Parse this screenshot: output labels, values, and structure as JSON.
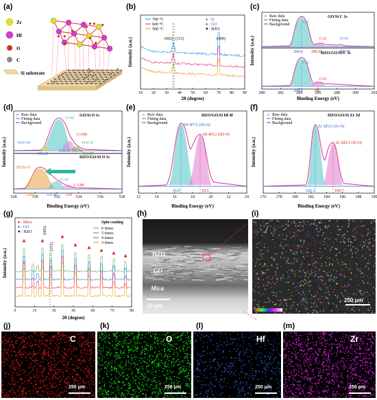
{
  "labels": [
    "(a)",
    "(b)",
    "(c)",
    "(d)",
    "(e)",
    "(f)",
    "(g)",
    "(h)",
    "(i)",
    "(j)",
    "(k)",
    "(l)",
    "(m)"
  ],
  "panel_a": {
    "legend": [
      {
        "text": "Zr",
        "color": "#e9dd2b"
      },
      {
        "text": "Hf",
        "color": "#d43bd0"
      },
      {
        "text": "O",
        "color": "#e02828"
      },
      {
        "text": "C",
        "color": "#8a8a8a"
      }
    ],
    "substrate_label": "Si substrate"
  },
  "panel_b": {
    "xlabel": "2θ (degree)",
    "ylabel": "Intensity (a.u.)",
    "legend": [
      "700 °C",
      "600 °C",
      "500 °C"
    ],
    "markers": [
      "♦ : Si",
      "♦ : GO",
      "♥ : HZO"
    ],
    "peak_labels": [
      "(002)",
      "(111)",
      "(400)"
    ],
    "ticks": [
      "10",
      "20",
      "30",
      "40",
      "50",
      "60",
      "70",
      "80",
      "90"
    ]
  },
  "panel_c": {
    "top_title": "GO/Si C 1s",
    "bottom_title": "HZO/GO/Si C 1s",
    "legend": [
      "Raw data",
      "Fitting data",
      "Background"
    ],
    "top_peaks": [
      "C-C",
      "C-O",
      "C=O"
    ],
    "top_values": [
      "284.8",
      "286.05",
      "288.79"
    ],
    "bottom_peaks": [
      "C-C",
      "C-O"
    ],
    "bottom_values": [
      "284.8",
      "286"
    ],
    "xlabel": "Binding Energy (eV)",
    "ylabel": "Intensity (a.u.)",
    "ticks": [
      "280",
      "282",
      "284",
      "286",
      "288",
      "290",
      "292"
    ]
  },
  "panel_d": {
    "top_title": "GO/Si O 1s",
    "bottom_title": "HZO/GO/Si O 1s",
    "legend": [
      "Raw data",
      "Fitting data",
      "Background"
    ],
    "top_peaks": [
      "C=O",
      "C-OH",
      "O-C=O",
      "O-C-C"
    ],
    "top_values": [
      "531.25",
      "532.22",
      "533.10",
      "533.87"
    ],
    "bottom_peaks": [
      "Hf/Zr-O",
      "C=O",
      "C-OH"
    ],
    "bottom_values": [
      "530.15",
      "531.83",
      "533"
    ],
    "xlabel": "Binding Energy (eV)",
    "ylabel": "Intensity (a.u.)",
    "ticks": [
      "528",
      "530",
      "532",
      "534",
      "536",
      "538"
    ]
  },
  "panel_e": {
    "title": "HZO/GO/Si Hf 4f",
    "legend": [
      "Raw data",
      "Fitting data",
      "Background"
    ],
    "peaks": [
      "Hf 4f7/2 (Hf-O)",
      "Hf 4f5/2 (Hf-O)"
    ],
    "values": [
      "16.9",
      "18.5"
    ],
    "xlabel": "Binding Energy (eV)",
    "ylabel": "Intensity (a.u.)",
    "ticks": [
      "12",
      "14",
      "16",
      "18",
      "20",
      "22",
      "24"
    ]
  },
  "panel_f": {
    "title": "HZO/GO/Si Zr 3d",
    "legend": [
      "Raw data",
      "Fitting data",
      "Background"
    ],
    "peaks": [
      "Zr 3d5/2 (Zr-O)",
      "Zr 3d3/2 (Zr-O)"
    ],
    "values": [
      "182.3",
      "184.7"
    ],
    "xlabel": "Binding Energy (eV)",
    "ylabel": "Intensity (a.u.)",
    "ticks": [
      "176",
      "178",
      "180",
      "182",
      "184",
      "186",
      "188",
      "190"
    ]
  },
  "panel_g": {
    "markers": [
      "♠ : Mica",
      "♦ : GO",
      "♥ : HZO"
    ],
    "legend_title": "Spin coating",
    "legend": [
      "6 times",
      "5 times",
      "4 times",
      "3 times"
    ],
    "peak_labels": [
      "(002)",
      "(111)"
    ],
    "xlabel": "2θ (degree)",
    "ylabel": "Intensity (a.u.)",
    "ticks": [
      "0",
      "15",
      "30",
      "45",
      "60",
      "75",
      "90"
    ]
  },
  "panel_h": {
    "layers": [
      "HZO",
      "GO",
      "Mica"
    ],
    "scale": "10 μm"
  },
  "panel_i": {
    "scale": "250 μm"
  },
  "maps": [
    {
      "element": "C",
      "scale": "250 μm",
      "color": "#ff2020"
    },
    {
      "element": "O",
      "scale": "250 μm",
      "color": "#20ff20"
    },
    {
      "element": "Hf",
      "scale": "250 μm",
      "color": "#3a7bff"
    },
    {
      "element": "Zr",
      "scale": "250 μm",
      "color": "#ff30ff"
    }
  ]
}
